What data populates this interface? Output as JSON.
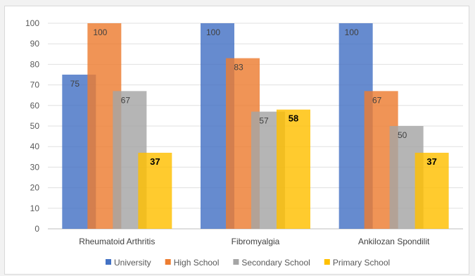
{
  "chart_data": {
    "type": "bar",
    "title": "",
    "xlabel": "",
    "ylabel": "",
    "ylim": [
      0,
      100
    ],
    "yticks": [
      0,
      10,
      20,
      30,
      40,
      50,
      60,
      70,
      80,
      90,
      100
    ],
    "grid": true,
    "legend_position": "bottom",
    "bars_overlap": true,
    "categories": [
      "Rheumatoid Arthritis",
      "Fibromyalgia",
      "Ankilozan Spondilit"
    ],
    "series": [
      {
        "name": "University",
        "color": "#4472c4",
        "values": [
          75,
          100,
          100
        ],
        "labels": [
          "75",
          "100",
          "100"
        ],
        "label_style": "normal"
      },
      {
        "name": "High School",
        "color": "#ed7d31",
        "values": [
          100,
          83,
          67
        ],
        "labels": [
          "100",
          "83",
          "67"
        ],
        "label_style": "normal"
      },
      {
        "name": "Secondary School",
        "color": "#a5a5a5",
        "values": [
          67,
          57,
          50
        ],
        "labels": [
          "67",
          "57",
          "50"
        ],
        "label_style": "normal"
      },
      {
        "name": "Primary School",
        "color": "#ffc000",
        "values": [
          37,
          58,
          37
        ],
        "labels": [
          "37",
          "58",
          "37"
        ],
        "label_style": "bold"
      }
    ]
  }
}
